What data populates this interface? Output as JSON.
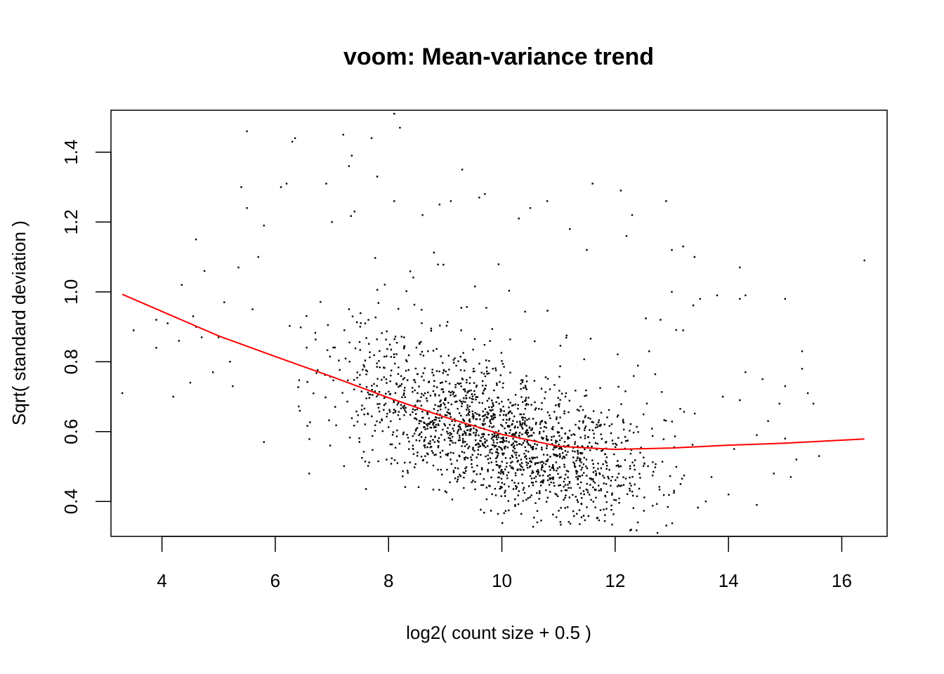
{
  "chart_data": {
    "type": "scatter",
    "title": "voom: Mean-variance trend",
    "xlabel": "log2( count size + 0.5 )",
    "ylabel": "Sqrt( standard deviation )",
    "xlim": [
      3.1,
      16.8
    ],
    "ylim": [
      0.3,
      1.52
    ],
    "x_ticks": [
      4,
      6,
      8,
      10,
      12,
      14,
      16
    ],
    "y_ticks": [
      0.4,
      0.6,
      0.8,
      1.0,
      1.2,
      1.4
    ],
    "x_tick_labels": [
      "4",
      "6",
      "8",
      "10",
      "12",
      "14",
      "16"
    ],
    "y_tick_labels": [
      "0.4",
      "0.6",
      "0.8",
      "1.0",
      "1.2",
      "1.4"
    ],
    "grid": false,
    "point_color": "#000000",
    "series": [
      {
        "type": "scatter",
        "points": [
          [
            3.3,
            0.71
          ],
          [
            3.5,
            0.89
          ],
          [
            3.9,
            0.92
          ],
          [
            3.9,
            0.84
          ],
          [
            4.1,
            0.91
          ],
          [
            4.2,
            0.7
          ],
          [
            4.3,
            0.86
          ],
          [
            4.35,
            1.02
          ],
          [
            4.5,
            0.74
          ],
          [
            4.55,
            0.93
          ],
          [
            4.6,
            0.9
          ],
          [
            4.6,
            1.15
          ],
          [
            4.7,
            0.87
          ],
          [
            4.75,
            1.06
          ],
          [
            4.9,
            0.77
          ],
          [
            5.0,
            0.87
          ],
          [
            5.1,
            0.97
          ],
          [
            5.2,
            0.8
          ],
          [
            5.25,
            0.73
          ],
          [
            5.35,
            1.07
          ],
          [
            5.4,
            1.3
          ],
          [
            5.5,
            1.46
          ],
          [
            5.5,
            1.24
          ],
          [
            5.6,
            0.95
          ],
          [
            5.7,
            1.1
          ],
          [
            5.8,
            0.57
          ],
          [
            5.8,
            1.19
          ],
          [
            6.1,
            1.3
          ],
          [
            6.2,
            1.31
          ],
          [
            6.3,
            1.43
          ],
          [
            6.35,
            1.44
          ],
          [
            6.6,
            0.48
          ],
          [
            6.9,
            1.31
          ],
          [
            7.0,
            1.2
          ],
          [
            7.2,
            1.45
          ],
          [
            7.3,
            1.36
          ],
          [
            7.35,
            1.39
          ],
          [
            7.4,
            1.23
          ],
          [
            7.7,
            1.44
          ],
          [
            7.8,
            1.33
          ],
          [
            8.1,
            1.51
          ],
          [
            8.2,
            1.47
          ],
          [
            8.1,
            1.26
          ],
          [
            8.6,
            1.22
          ],
          [
            8.9,
            1.25
          ],
          [
            9.1,
            1.26
          ],
          [
            9.3,
            1.35
          ],
          [
            9.6,
            1.27
          ],
          [
            9.7,
            1.28
          ],
          [
            10.3,
            1.21
          ],
          [
            10.8,
            1.26
          ],
          [
            10.5,
            1.24
          ],
          [
            11.6,
            1.31
          ],
          [
            11.2,
            1.18
          ],
          [
            11.5,
            1.12
          ],
          [
            12.1,
            1.29
          ],
          [
            12.3,
            1.22
          ],
          [
            12.2,
            1.16
          ],
          [
            12.9,
            1.26
          ],
          [
            13.0,
            1.12
          ],
          [
            13.2,
            1.13
          ],
          [
            13.4,
            1.1
          ],
          [
            13.0,
            1.0
          ],
          [
            13.2,
            0.89
          ],
          [
            13.5,
            0.98
          ],
          [
            13.8,
            0.99
          ],
          [
            14.2,
            1.07
          ],
          [
            14.2,
            0.98
          ],
          [
            14.3,
            0.99
          ],
          [
            14.3,
            0.77
          ],
          [
            14.2,
            0.69
          ],
          [
            14.5,
            0.59
          ],
          [
            14.5,
            0.39
          ],
          [
            14.6,
            0.75
          ],
          [
            14.7,
            0.63
          ],
          [
            14.8,
            0.48
          ],
          [
            14.9,
            0.68
          ],
          [
            15.0,
            0.73
          ],
          [
            15.0,
            0.58
          ],
          [
            15.1,
            0.47
          ],
          [
            15.2,
            0.52
          ],
          [
            15.3,
            0.83
          ],
          [
            15.3,
            0.78
          ],
          [
            15.4,
            0.71
          ],
          [
            15.5,
            0.68
          ],
          [
            15.6,
            0.53
          ],
          [
            15.0,
            0.98
          ],
          [
            16.4,
            1.09
          ],
          [
            13.7,
            0.47
          ],
          [
            13.9,
            0.7
          ],
          [
            14.0,
            0.42
          ],
          [
            14.1,
            0.55
          ],
          [
            13.6,
            0.4
          ],
          [
            12.8,
            0.92
          ],
          [
            12.6,
            0.83
          ],
          [
            12.4,
            0.34
          ]
        ]
      },
      {
        "type": "cloud",
        "name": "",
        "count": 9000,
        "x_min": 5.6,
        "x_max": 13.6,
        "x_center": 10.0,
        "x_spread": 2.2
      },
      {
        "type": "line",
        "color": "#ff0000",
        "points": [
          [
            3.3,
            0.993
          ],
          [
            4.0,
            0.944
          ],
          [
            5.0,
            0.874
          ],
          [
            6.0,
            0.815
          ],
          [
            7.0,
            0.757
          ],
          [
            8.0,
            0.697
          ],
          [
            9.0,
            0.641
          ],
          [
            10.0,
            0.592
          ],
          [
            11.0,
            0.558
          ],
          [
            12.0,
            0.549
          ],
          [
            13.0,
            0.553
          ],
          [
            14.0,
            0.561
          ],
          [
            15.0,
            0.567
          ],
          [
            16.4,
            0.579
          ]
        ]
      }
    ]
  }
}
